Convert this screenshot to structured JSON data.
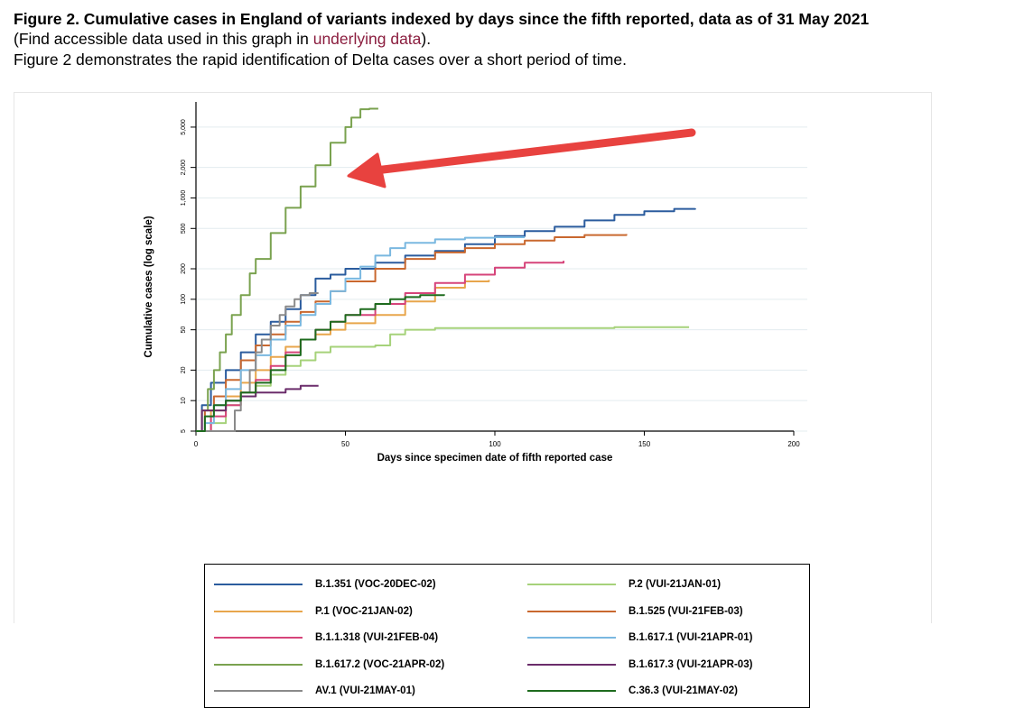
{
  "header": {
    "title": "Figure 2. Cumulative cases in England of variants indexed by days since the fifth reported, data as of 31 May 2021",
    "access_pre": "(Find accessible data used in this graph in ",
    "access_link": "underlying data",
    "access_post": ").",
    "description": "Figure 2 demonstrates the rapid identification of Delta cases over a short period of time."
  },
  "annotation": {
    "arrow_color": "#e8423f"
  },
  "chart_data": {
    "type": "line",
    "title": "",
    "xlabel": "Days since specimen date of fifth reported case",
    "ylabel": "Cumulative cases (log scale)",
    "xlim": [
      0,
      200
    ],
    "ylim": [
      5,
      8000
    ],
    "yscale": "log",
    "xticks": [
      0,
      50,
      100,
      150,
      200
    ],
    "xtick_labels": [
      "0",
      "50",
      "100",
      "150",
      "200"
    ],
    "yticks": [
      5,
      10,
      20,
      50,
      100,
      200,
      500,
      1000,
      2000,
      5000
    ],
    "ytick_labels": [
      "5",
      "10",
      "20",
      "50",
      "100",
      "200",
      "500",
      "1,000",
      "2,000",
      "5,000"
    ],
    "grid": true,
    "legend_position": "bottom",
    "series": [
      {
        "name": "B.1.351 (VOC-20DEC-02)",
        "color": "#2b5c9e",
        "x": [
          0,
          2,
          5,
          10,
          15,
          20,
          25,
          30,
          35,
          40,
          45,
          50,
          60,
          70,
          80,
          90,
          100,
          110,
          120,
          130,
          140,
          150,
          160,
          167
        ],
        "y": [
          5,
          9,
          15,
          20,
          30,
          45,
          60,
          80,
          110,
          160,
          175,
          200,
          230,
          270,
          300,
          350,
          420,
          470,
          520,
          600,
          680,
          740,
          780,
          790
        ]
      },
      {
        "name": "P.2 (VUI-21JAN-01)",
        "color": "#a6d27a",
        "x": [
          0,
          5,
          10,
          15,
          20,
          25,
          30,
          35,
          40,
          45,
          50,
          60,
          65,
          70,
          80,
          100,
          120,
          140,
          165
        ],
        "y": [
          5,
          6,
          9,
          11,
          14,
          18,
          22,
          25,
          30,
          34,
          34,
          35,
          45,
          50,
          52,
          52,
          52,
          53,
          53
        ]
      },
      {
        "name": "P.1 (VOC-21JAN-02)",
        "color": "#e8a64c",
        "x": [
          0,
          5,
          10,
          15,
          20,
          25,
          30,
          35,
          40,
          45,
          50,
          60,
          70,
          80,
          90,
          98
        ],
        "y": [
          5,
          8,
          11,
          15,
          20,
          27,
          34,
          40,
          45,
          50,
          58,
          70,
          95,
          130,
          150,
          155
        ]
      },
      {
        "name": "B.1.525 (VUI-21FEB-03)",
        "color": "#c9682f",
        "x": [
          0,
          3,
          6,
          10,
          15,
          20,
          25,
          30,
          35,
          40,
          45,
          50,
          60,
          70,
          80,
          90,
          100,
          110,
          120,
          130,
          144
        ],
        "y": [
          5,
          8,
          11,
          16,
          25,
          35,
          45,
          60,
          75,
          95,
          120,
          150,
          200,
          250,
          290,
          320,
          350,
          380,
          410,
          430,
          440
        ]
      },
      {
        "name": "B.1.1.318 (VUI-21FEB-04)",
        "color": "#d6447a",
        "x": [
          0,
          5,
          10,
          15,
          20,
          25,
          30,
          35,
          40,
          45,
          50,
          60,
          70,
          80,
          90,
          100,
          110,
          123
        ],
        "y": [
          5,
          7,
          9,
          12,
          16,
          22,
          30,
          40,
          50,
          60,
          70,
          90,
          115,
          145,
          175,
          205,
          230,
          240
        ]
      },
      {
        "name": "B.1.617.1 (VUI-21APR-01)",
        "color": "#7ab8e0",
        "x": [
          0,
          3,
          6,
          10,
          15,
          20,
          25,
          30,
          35,
          40,
          45,
          50,
          55,
          60,
          65,
          70,
          80,
          90,
          100,
          110
        ],
        "y": [
          5,
          6,
          9,
          13,
          20,
          28,
          40,
          55,
          70,
          90,
          120,
          160,
          210,
          270,
          320,
          360,
          390,
          405,
          410,
          410
        ]
      },
      {
        "name": "B.1.617.2 (VOC-21APR-02)",
        "color": "#7aa24f",
        "x": [
          0,
          2,
          4,
          6,
          8,
          10,
          12,
          15,
          18,
          20,
          25,
          30,
          35,
          40,
          45,
          50,
          52,
          55,
          58,
          60,
          61
        ],
        "y": [
          5,
          8,
          13,
          20,
          30,
          45,
          70,
          110,
          180,
          250,
          450,
          800,
          1300,
          2100,
          3500,
          5000,
          6200,
          7500,
          7600,
          7600,
          7600
        ]
      },
      {
        "name": "B.1.617.3 (VUI-21APR-03)",
        "color": "#6b2d6b",
        "x": [
          0,
          2,
          5,
          10,
          15,
          20,
          25,
          30,
          35,
          41
        ],
        "y": [
          5,
          8,
          8,
          10,
          11,
          12,
          12,
          13,
          14,
          14
        ]
      },
      {
        "name": "AV.1 (VUI-21MAY-01)",
        "color": "#8a8a8a",
        "x": [
          0,
          3,
          6,
          10,
          13,
          15,
          18,
          20,
          22,
          25,
          28,
          30,
          33,
          35,
          38,
          41
        ],
        "y": [
          5,
          5,
          5,
          5,
          8,
          12,
          20,
          30,
          40,
          55,
          70,
          85,
          100,
          110,
          115,
          115
        ]
      },
      {
        "name": "C.36.3 (VUI-21MAY-02)",
        "color": "#1e6b1e",
        "x": [
          0,
          3,
          6,
          10,
          15,
          20,
          25,
          30,
          35,
          40,
          45,
          50,
          55,
          60,
          65,
          70,
          75,
          83
        ],
        "y": [
          5,
          7,
          9,
          10,
          12,
          15,
          20,
          28,
          40,
          50,
          60,
          70,
          80,
          90,
          100,
          105,
          110,
          112
        ]
      }
    ]
  }
}
